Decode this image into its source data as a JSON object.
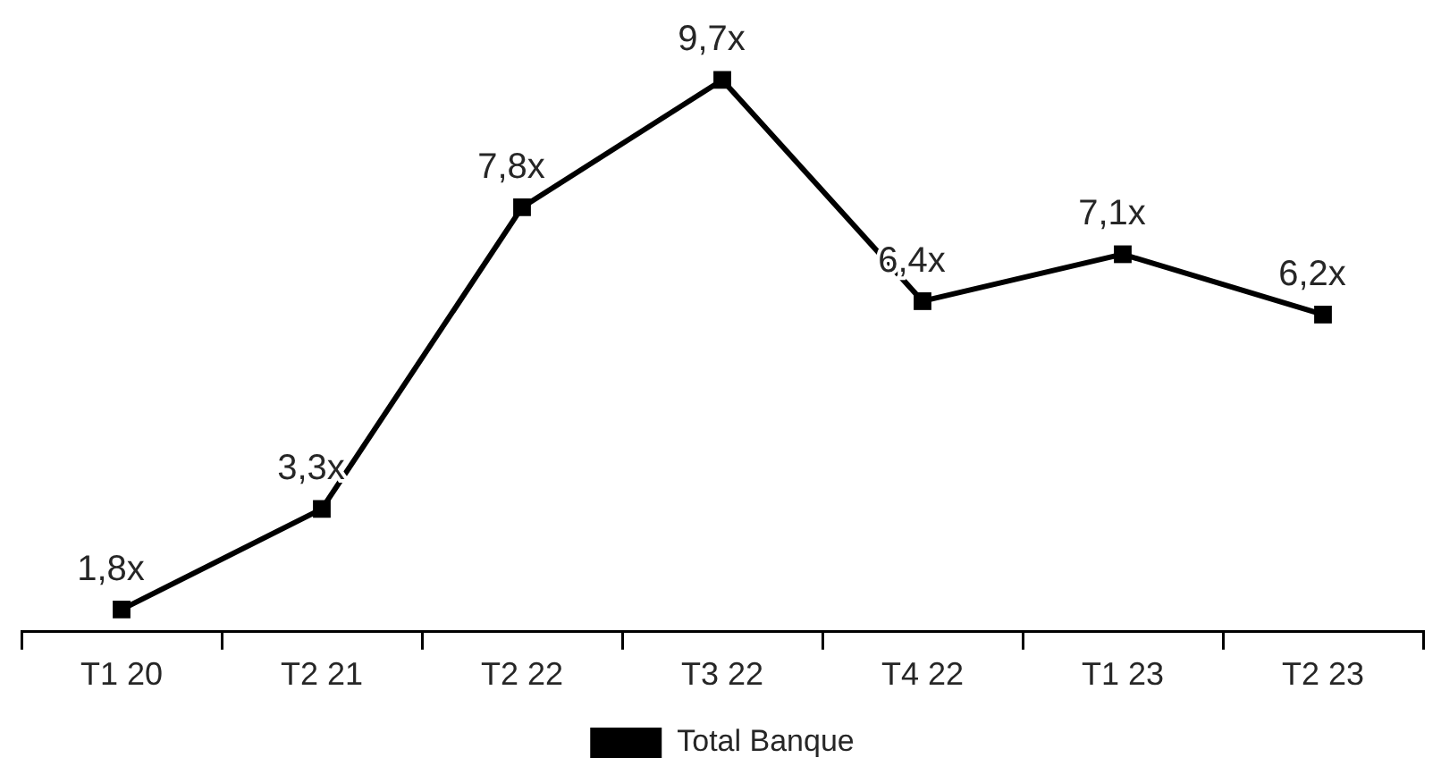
{
  "chart_data": {
    "type": "line",
    "categories": [
      "T1 20",
      "T2 21",
      "T2 22",
      "T3 22",
      "T4 22",
      "T1 23",
      "T2 23"
    ],
    "series": [
      {
        "name": "Total Banque",
        "color": "#000000",
        "values": [
          1.8,
          3.3,
          7.8,
          9.7,
          6.4,
          7.1,
          6.2
        ],
        "value_labels": [
          "1,8x",
          "3,3x",
          "7,8x",
          "9,7x",
          "6,4x",
          "7,1x",
          "6,2x"
        ]
      }
    ],
    "marker": "square",
    "legend": "bottom",
    "tick_labels": "x"
  }
}
